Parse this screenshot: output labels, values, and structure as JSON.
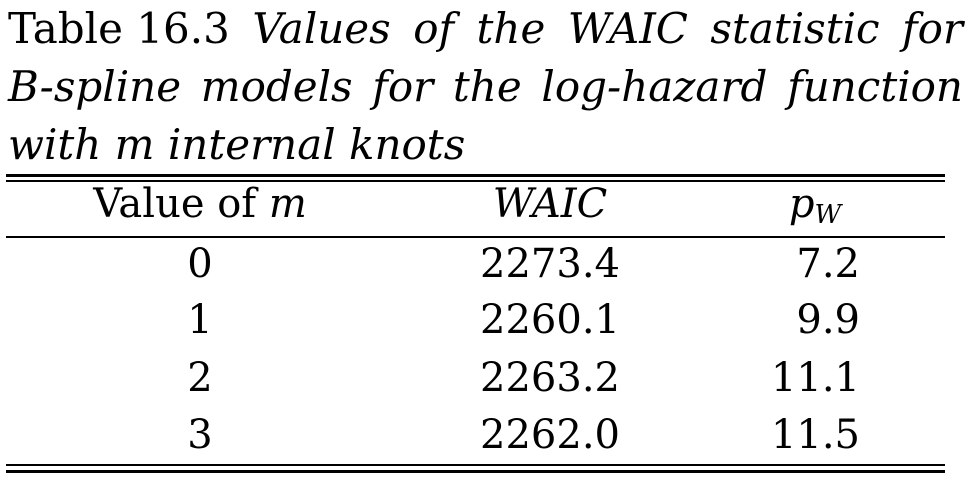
{
  "caption": {
    "label": "Table 16.3",
    "line1_words": [
      "Values",
      "of",
      "the",
      "WAIC",
      "statistic",
      "for"
    ],
    "line2_words": [
      "B-spline",
      "models",
      "for",
      "the",
      "log-hazard",
      "function"
    ],
    "line3_start": "with",
    "line3_var": "m",
    "line3_end": "internal knots"
  },
  "table": {
    "header": {
      "col1_text": "Value of",
      "col1_var": "m",
      "col2": "WAIC",
      "col3_main": "p",
      "col3_sub": "W"
    },
    "rows": [
      {
        "m": "0",
        "waic": "2273.4",
        "pw": "7.2"
      },
      {
        "m": "1",
        "waic": "2260.1",
        "pw": "9.9"
      },
      {
        "m": "2",
        "waic": "2263.2",
        "pw": "11.1"
      },
      {
        "m": "3",
        "waic": "2262.0",
        "pw": "11.5"
      }
    ]
  }
}
